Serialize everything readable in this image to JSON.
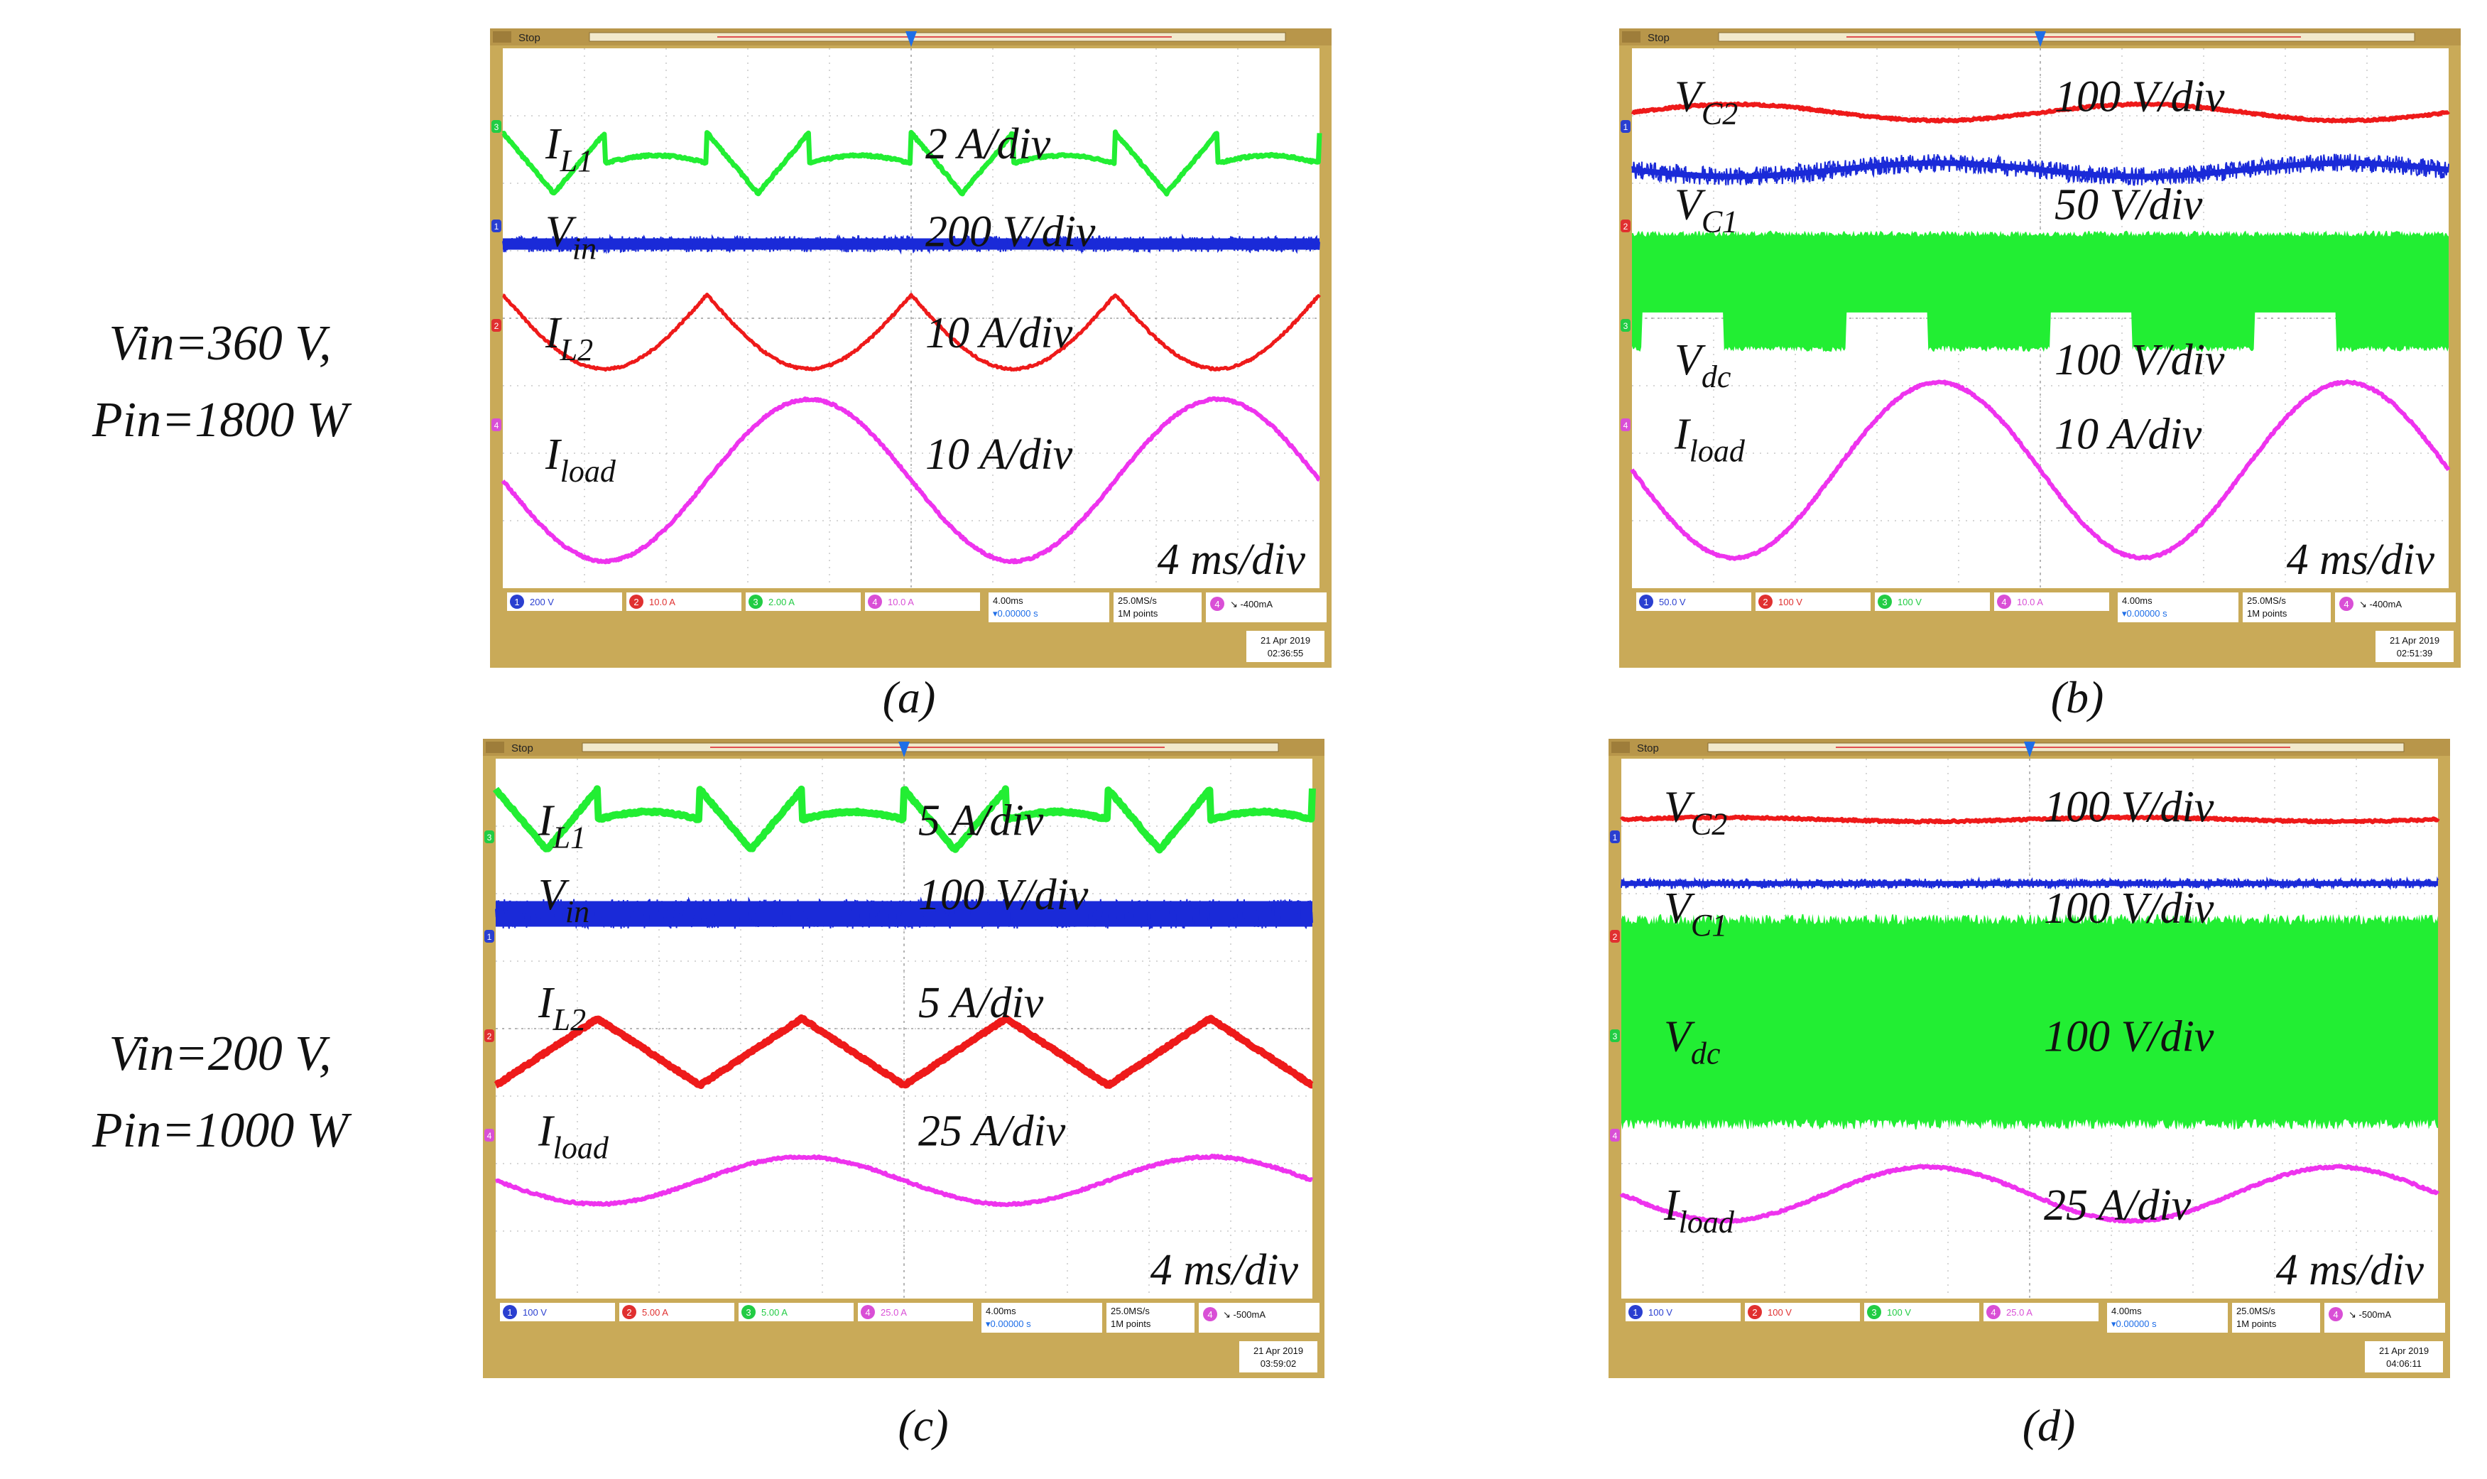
{
  "row_labels": [
    {
      "line1": "Vin=360 V,",
      "line2": "Pin=1800 W"
    },
    {
      "line1": "Vin=200 V,",
      "line2": "Pin=1000 W"
    }
  ],
  "chart_data": [
    {
      "id": "a",
      "type": "line",
      "caption": "(a)",
      "status": "Stop",
      "time_div": "4 ms/div",
      "x_range_ms": [
        -20,
        20
      ],
      "timestamp": [
        "21 Apr 2019",
        "02:36:55"
      ],
      "channels": [
        {
          "num": "1",
          "setting": "200 V",
          "color": "#2a3fd0"
        },
        {
          "num": "2",
          "setting": "10.0 A",
          "color": "#e03030"
        },
        {
          "num": "3",
          "setting": "2.00 A",
          "color": "#22cc44"
        },
        {
          "num": "4",
          "setting": "10.0 A",
          "color": "#d94fd6"
        }
      ],
      "hbox": {
        "l1": "4.00ms",
        "l2": "▾0.00000 s"
      },
      "sbox": {
        "l1": "25.0MS/s",
        "l2": "1M points"
      },
      "trig": "↘ -400mA",
      "series": [
        {
          "name": "I_L1",
          "sym": "I",
          "sub": "L1",
          "scale": "2 A/div",
          "color": "#22ee33",
          "kind": "triangle_rect",
          "offset_div": 6.3,
          "amp_div": 0.45,
          "period_ms": 10,
          "phase": 0.0,
          "thick": 7,
          "level_div": 6.6
        },
        {
          "name": "V_in",
          "sym": "V",
          "sub": "in",
          "scale": "200 V/div",
          "color": "#1a2ad8",
          "kind": "noise",
          "offset_div": 5.1,
          "amp_div": 0.08,
          "thick": 16,
          "level_div": 5.3
        },
        {
          "name": "I_L2",
          "sym": "I",
          "sub": "L2",
          "scale": "10 A/div",
          "color": "#ee1a1a",
          "kind": "bumps",
          "offset_div": 3.8,
          "amp_div": 0.55,
          "period_ms": 10,
          "phase": 0.0,
          "thick": 5,
          "level_div": 3.8
        },
        {
          "name": "I_load",
          "sym": "I",
          "sub": "load",
          "scale": "10 A/div",
          "color": "#ee33ee",
          "kind": "sine",
          "offset_div": 1.6,
          "amp_div": 1.2,
          "period_ms": 20,
          "phase": 3.14,
          "thick": 6,
          "level_div": 2.0
        }
      ],
      "markers": [
        "3",
        "1",
        "2",
        "4"
      ]
    },
    {
      "id": "b",
      "type": "line",
      "caption": "(b)",
      "status": "Stop",
      "time_div": "4 ms/div",
      "x_range_ms": [
        -20,
        20
      ],
      "timestamp": [
        "21 Apr 2019",
        "02:51:39"
      ],
      "channels": [
        {
          "num": "1",
          "setting": "50.0 V",
          "color": "#2a3fd0"
        },
        {
          "num": "2",
          "setting": "100 V",
          "color": "#e03030"
        },
        {
          "num": "3",
          "setting": "100 V",
          "color": "#22cc44"
        },
        {
          "num": "4",
          "setting": "10.0 A",
          "color": "#d94fd6"
        }
      ],
      "hbox": {
        "l1": "4.00ms",
        "l2": "▾0.00000 s"
      },
      "sbox": {
        "l1": "25.0MS/s",
        "l2": "1M points"
      },
      "trig": "↘ -400mA",
      "series": [
        {
          "name": "V_C2",
          "sym": "V",
          "sub": "C2",
          "scale": "100 V/div",
          "color": "#ee1a1a",
          "kind": "sine",
          "offset_div": 7.05,
          "amp_div": 0.12,
          "period_ms": 20,
          "phase": 0.0,
          "thick": 6,
          "level_div": 7.3
        },
        {
          "name": "V_C1",
          "sym": "V",
          "sub": "C1",
          "scale": "50 V/div",
          "color": "#1a2ad8",
          "kind": "sine_noise",
          "offset_div": 6.2,
          "amp_div": 0.1,
          "period_ms": 20,
          "phase": 3.14,
          "thick": 8,
          "level_div": 5.7
        },
        {
          "name": "V_dc",
          "sym": "V",
          "sub": "dc",
          "scale": "100 V/div",
          "color": "#22ee33",
          "kind": "band_dips",
          "offset_div": 4.4,
          "amp_div": 0.9,
          "period_ms": 10,
          "phase": 0.0,
          "thick": 0,
          "level_div": 3.4
        },
        {
          "name": "I_load",
          "sym": "I",
          "sub": "load",
          "scale": "10 A/div",
          "color": "#ee33ee",
          "kind": "sine",
          "offset_div": 1.75,
          "amp_div": 1.3,
          "period_ms": 20,
          "phase": 3.14,
          "thick": 6,
          "level_div": 2.3
        }
      ],
      "markers": [
        "1",
        "2",
        "3",
        "4"
      ]
    },
    {
      "id": "c",
      "type": "line",
      "caption": "(c)",
      "status": "Stop",
      "time_div": "4 ms/div",
      "x_range_ms": [
        -20,
        20
      ],
      "timestamp": [
        "21 Apr 2019",
        "03:59:02"
      ],
      "channels": [
        {
          "num": "1",
          "setting": "100 V",
          "color": "#2a3fd0"
        },
        {
          "num": "2",
          "setting": "5.00 A",
          "color": "#e03030"
        },
        {
          "num": "3",
          "setting": "5.00 A",
          "color": "#22cc44"
        },
        {
          "num": "4",
          "setting": "25.0 A",
          "color": "#d94fd6"
        }
      ],
      "hbox": {
        "l1": "4.00ms",
        "l2": "▾0.00000 s"
      },
      "sbox": {
        "l1": "25.0MS/s",
        "l2": "1M points"
      },
      "trig": "↘ -500mA",
      "series": [
        {
          "name": "I_L1",
          "sym": "I",
          "sub": "L1",
          "scale": "5 A/div",
          "color": "#22ee33",
          "kind": "triangle_rect",
          "offset_div": 7.1,
          "amp_div": 0.45,
          "period_ms": 10,
          "phase": 0.0,
          "thick": 10,
          "level_div": 7.1
        },
        {
          "name": "V_in",
          "sym": "V",
          "sub": "in",
          "scale": "100 V/div",
          "color": "#1a2ad8",
          "kind": "noise",
          "offset_div": 5.7,
          "amp_div": 0.18,
          "thick": 36,
          "level_div": 6.0
        },
        {
          "name": "I_L2",
          "sym": "I",
          "sub": "L2",
          "scale": "5 A/div",
          "color": "#ee1a1a",
          "kind": "triangle_abs",
          "offset_div": 3.6,
          "amp_div": 0.55,
          "period_ms": 10,
          "phase": 0.0,
          "thick": 10,
          "level_div": 4.4
        },
        {
          "name": "I_load",
          "sym": "I",
          "sub": "load",
          "scale": "25 A/div",
          "color": "#ee33ee",
          "kind": "sine",
          "offset_div": 1.75,
          "amp_div": 0.35,
          "period_ms": 20,
          "phase": 3.14,
          "thick": 6,
          "level_div": 2.5
        }
      ],
      "markers": [
        "3",
        "1",
        "2",
        "4"
      ]
    },
    {
      "id": "d",
      "type": "line",
      "caption": "(d)",
      "status": "Stop",
      "time_div": "4 ms/div",
      "x_range_ms": [
        -20,
        20
      ],
      "timestamp": [
        "21 Apr 2019",
        "04:06:11"
      ],
      "channels": [
        {
          "num": "1",
          "setting": "100 V",
          "color": "#2a3fd0"
        },
        {
          "num": "2",
          "setting": "100 V",
          "color": "#e03030"
        },
        {
          "num": "3",
          "setting": "100 V",
          "color": "#22cc44"
        },
        {
          "num": "4",
          "setting": "25.0 A",
          "color": "#d94fd6"
        }
      ],
      "hbox": {
        "l1": "4.00ms",
        "l2": "▾0.00000 s"
      },
      "sbox": {
        "l1": "25.0MS/s",
        "l2": "1M points"
      },
      "trig": "↘ -500mA",
      "series": [
        {
          "name": "V_C2",
          "sym": "V",
          "sub": "C2",
          "scale": "100 V/div",
          "color": "#ee1a1a",
          "kind": "sine",
          "offset_div": 7.1,
          "amp_div": 0.03,
          "period_ms": 20,
          "phase": 0.0,
          "thick": 6,
          "level_div": 7.3
        },
        {
          "name": "V_C1",
          "sym": "V",
          "sub": "C1",
          "scale": "100 V/div",
          "color": "#1a2ad8",
          "kind": "noise",
          "offset_div": 6.15,
          "amp_div": 0.03,
          "thick": 7,
          "level_div": 5.8
        },
        {
          "name": "V_dc",
          "sym": "V",
          "sub": "dc",
          "scale": "100 V/div",
          "color": "#22ee33",
          "kind": "band",
          "offset_div": 4.1,
          "amp_div": 1.6,
          "thick": 0,
          "level_div": 3.9
        },
        {
          "name": "I_load",
          "sym": "I",
          "sub": "load",
          "scale": "25 A/div",
          "color": "#ee33ee",
          "kind": "sine",
          "offset_div": 1.55,
          "amp_div": 0.4,
          "period_ms": 20,
          "phase": 3.14,
          "thick": 6,
          "level_div": 1.4
        }
      ],
      "markers": [
        "1",
        "2",
        "3",
        "4"
      ]
    }
  ]
}
